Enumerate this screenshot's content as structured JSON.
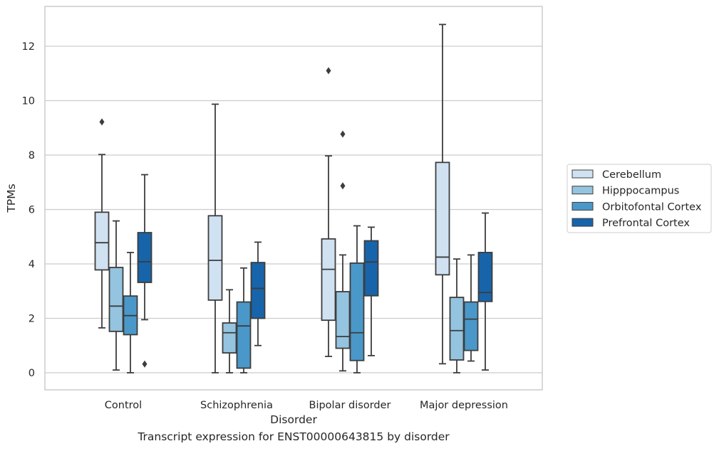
{
  "caption": "Transcript expression for ENST00000643815 by disorder",
  "chart_data": {
    "type": "boxplot",
    "xlabel": "Disorder",
    "ylabel": "TPMs",
    "ylim": [
      -0.6,
      13.4
    ],
    "yticks": [
      0,
      2,
      4,
      6,
      8,
      10,
      12
    ],
    "grid": "horizontal",
    "legend_position": "right",
    "categories": [
      "Control",
      "Schizophrenia",
      "Bipolar disorder",
      "Major depression"
    ],
    "series": [
      {
        "name": "Cerebellum",
        "color": "#d0e1f2",
        "boxes": [
          {
            "whislo": 1.65,
            "q1": 3.78,
            "med": 4.78,
            "q3": 5.9,
            "whishi": 8.02,
            "fliers": [
              9.22
            ]
          },
          {
            "whislo": 0.0,
            "q1": 2.67,
            "med": 4.13,
            "q3": 5.77,
            "whishi": 9.87,
            "fliers": []
          },
          {
            "whislo": 0.6,
            "q1": 1.93,
            "med": 3.8,
            "q3": 4.92,
            "whishi": 7.97,
            "fliers": [
              11.1
            ]
          },
          {
            "whislo": 0.33,
            "q1": 3.6,
            "med": 4.25,
            "q3": 7.73,
            "whishi": 12.8,
            "fliers": []
          }
        ]
      },
      {
        "name": "Hipppocampus",
        "color": "#94c4df",
        "boxes": [
          {
            "whislo": 0.1,
            "q1": 1.52,
            "med": 2.45,
            "q3": 3.87,
            "whishi": 5.58,
            "fliers": []
          },
          {
            "whislo": 0.0,
            "q1": 0.73,
            "med": 1.47,
            "q3": 1.83,
            "whishi": 3.05,
            "fliers": []
          },
          {
            "whislo": 0.07,
            "q1": 0.9,
            "med": 1.33,
            "q3": 2.98,
            "whishi": 4.33,
            "fliers": [
              6.87,
              8.77
            ]
          },
          {
            "whislo": 0.0,
            "q1": 0.47,
            "med": 1.55,
            "q3": 2.77,
            "whishi": 4.18,
            "fliers": []
          }
        ]
      },
      {
        "name": "Orbitofontal Cortex",
        "color": "#4a98c9",
        "boxes": [
          {
            "whislo": 0.0,
            "q1": 1.4,
            "med": 2.1,
            "q3": 2.82,
            "whishi": 4.42,
            "fliers": []
          },
          {
            "whislo": 0.0,
            "q1": 0.17,
            "med": 1.72,
            "q3": 2.6,
            "whishi": 3.85,
            "fliers": []
          },
          {
            "whislo": 0.0,
            "q1": 0.45,
            "med": 1.47,
            "q3": 4.03,
            "whishi": 5.4,
            "fliers": []
          },
          {
            "whislo": 0.43,
            "q1": 0.82,
            "med": 1.97,
            "q3": 2.6,
            "whishi": 4.33,
            "fliers": []
          }
        ]
      },
      {
        "name": "Prefrontal Cortex",
        "color": "#1764ab",
        "boxes": [
          {
            "whislo": 1.95,
            "q1": 3.32,
            "med": 4.08,
            "q3": 5.15,
            "whishi": 7.28,
            "fliers": [
              0.32
            ]
          },
          {
            "whislo": 1.0,
            "q1": 2.0,
            "med": 3.1,
            "q3": 4.05,
            "whishi": 4.8,
            "fliers": []
          },
          {
            "whislo": 0.63,
            "q1": 2.83,
            "med": 4.07,
            "q3": 4.85,
            "whishi": 5.35,
            "fliers": []
          },
          {
            "whislo": 0.1,
            "q1": 2.62,
            "med": 2.95,
            "q3": 4.42,
            "whishi": 5.87,
            "fliers": []
          }
        ]
      }
    ]
  }
}
